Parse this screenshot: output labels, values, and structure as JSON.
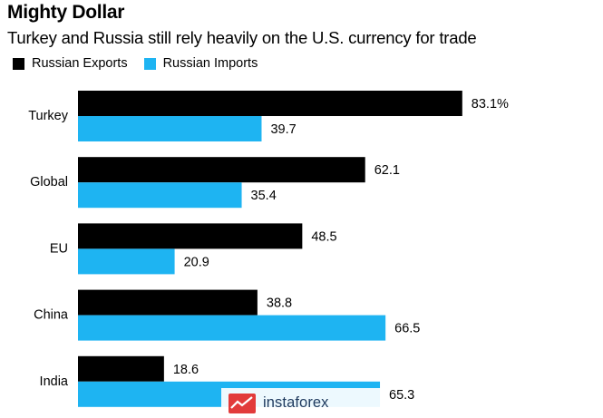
{
  "chart_data": {
    "type": "bar",
    "orientation": "horizontal",
    "title": "Mighty Dollar",
    "subtitle": "Turkey and Russia still rely heavily on the U.S. currency for trade",
    "categories": [
      "Turkey",
      "Global",
      "EU",
      "China",
      "India"
    ],
    "series": [
      {
        "name": "Russian Exports",
        "color": "#000000",
        "values": [
          83.1,
          62.1,
          48.5,
          38.8,
          18.6
        ],
        "labels": [
          "83.1%",
          "62.1",
          "48.5",
          "38.8",
          "18.6"
        ]
      },
      {
        "name": "Russian Imports",
        "color": "#1eb4f2",
        "values": [
          39.7,
          35.4,
          20.9,
          66.5,
          65.3
        ],
        "labels": [
          "39.7",
          "35.4",
          "20.9",
          "66.5",
          "65.3"
        ]
      }
    ],
    "xlim": [
      0,
      100
    ],
    "legend_position": "top-left",
    "grid": false
  },
  "watermark": {
    "text": "instaforex"
  }
}
